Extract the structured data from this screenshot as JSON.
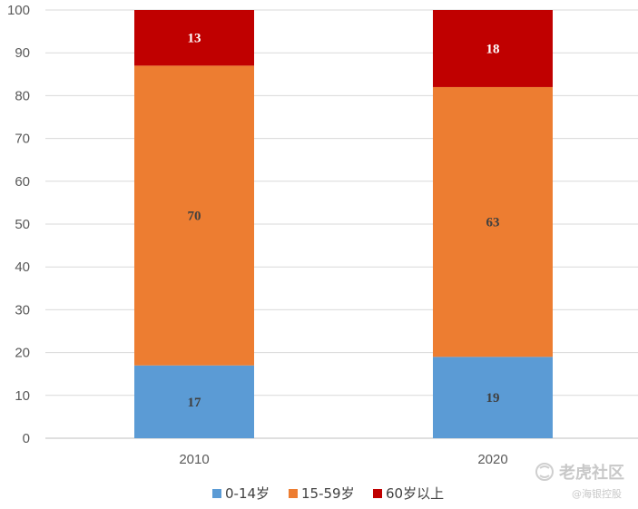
{
  "chart_data": {
    "type": "bar",
    "stacked": true,
    "categories": [
      "2010",
      "2020"
    ],
    "series": [
      {
        "name": "0-14岁",
        "values": [
          17,
          19
        ],
        "color": "#5B9BD5",
        "label_color": "#404040"
      },
      {
        "name": "15-59岁",
        "values": [
          70,
          63
        ],
        "color": "#ED7D31",
        "label_color": "#404040"
      },
      {
        "name": "60岁以上",
        "values": [
          13,
          18
        ],
        "color": "#C00000",
        "label_color": "#ffffff"
      }
    ],
    "ylim": [
      0,
      100
    ],
    "yticks": [
      0,
      10,
      20,
      30,
      40,
      50,
      60,
      70,
      80,
      90,
      100
    ],
    "grid": true,
    "legend_position": "bottom"
  },
  "watermark": {
    "main": "老虎社区",
    "sub": "@海银控股",
    "icon": "tiger-logo-icon"
  }
}
